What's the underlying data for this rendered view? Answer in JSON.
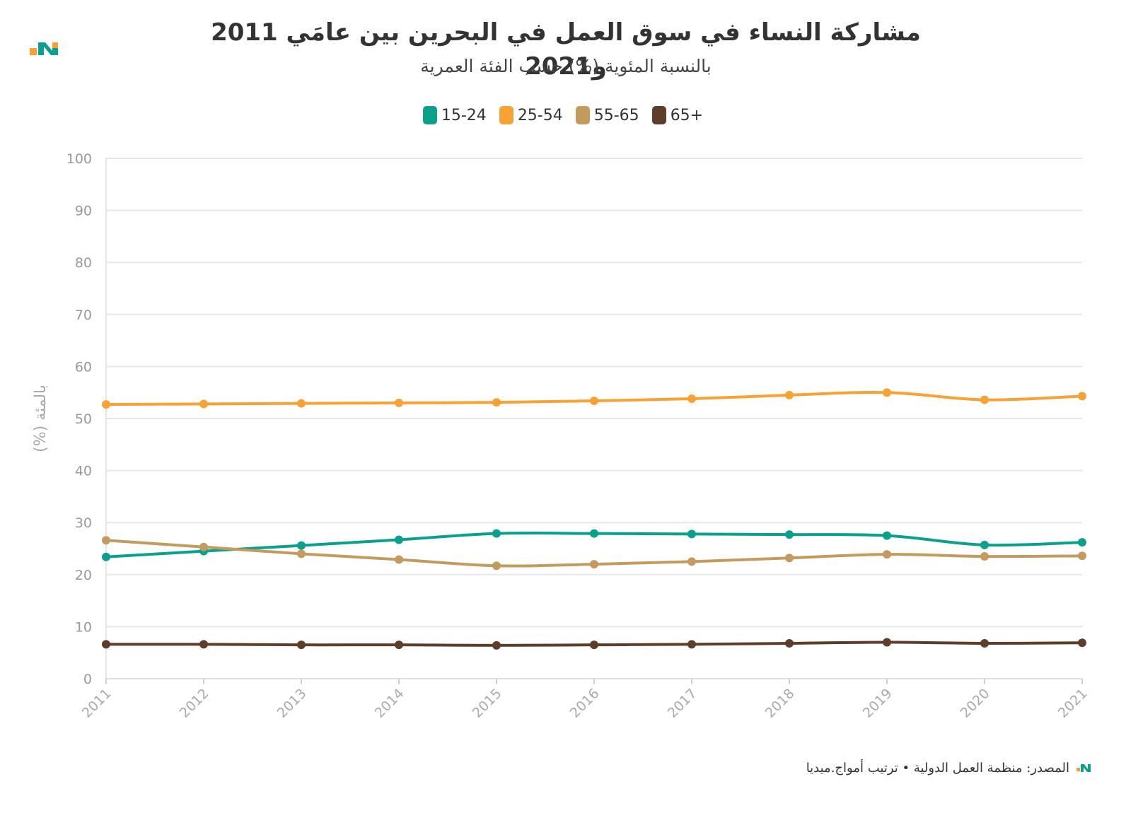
{
  "title": "مشاركة النساء في سوق العمل في البحرين بين عامَي 2011 و2021",
  "subtitle": "بالنسبة المئوية (%) حسب الفئة العمرية",
  "source": "المصدر: منظمة العمل الدولية • ترتيب أمواج.ميديا",
  "chart_data": {
    "type": "line",
    "title": "مشاركة النساء في سوق العمل في البحرين بين عامَي 2011 و2021",
    "subtitle": "بالنسبة المئوية (%) حسب الفئة العمرية",
    "xlabel": "",
    "ylabel": "بالمئة (%)",
    "ylim": [
      0,
      100
    ],
    "yticks": [
      0,
      10,
      20,
      30,
      40,
      50,
      60,
      70,
      80,
      90,
      100
    ],
    "grid": true,
    "legend_position": "top-center",
    "x": [
      "2011",
      "2012",
      "2013",
      "2014",
      "2015",
      "2016",
      "2017",
      "2018",
      "2019",
      "2020",
      "2021"
    ],
    "series": [
      {
        "name": "15-24",
        "color": "#0aa08c",
        "values": [
          23.4,
          24.5,
          25.6,
          26.7,
          27.9,
          27.9,
          27.8,
          27.7,
          27.5,
          25.7,
          26.2
        ]
      },
      {
        "name": "25-54",
        "color": "#f7a234",
        "values": [
          52.7,
          52.8,
          52.9,
          53.0,
          53.1,
          53.4,
          53.8,
          54.5,
          55.0,
          53.6,
          54.3
        ]
      },
      {
        "name": "55-65",
        "color": "#c39b5f",
        "values": [
          26.6,
          25.3,
          24.0,
          22.9,
          21.7,
          22.0,
          22.5,
          23.2,
          23.9,
          23.5,
          23.6
        ]
      },
      {
        "name": "65+",
        "color": "#5e3e2a",
        "values": [
          6.6,
          6.6,
          6.5,
          6.5,
          6.4,
          6.5,
          6.6,
          6.8,
          7.0,
          6.8,
          6.9
        ]
      }
    ]
  }
}
